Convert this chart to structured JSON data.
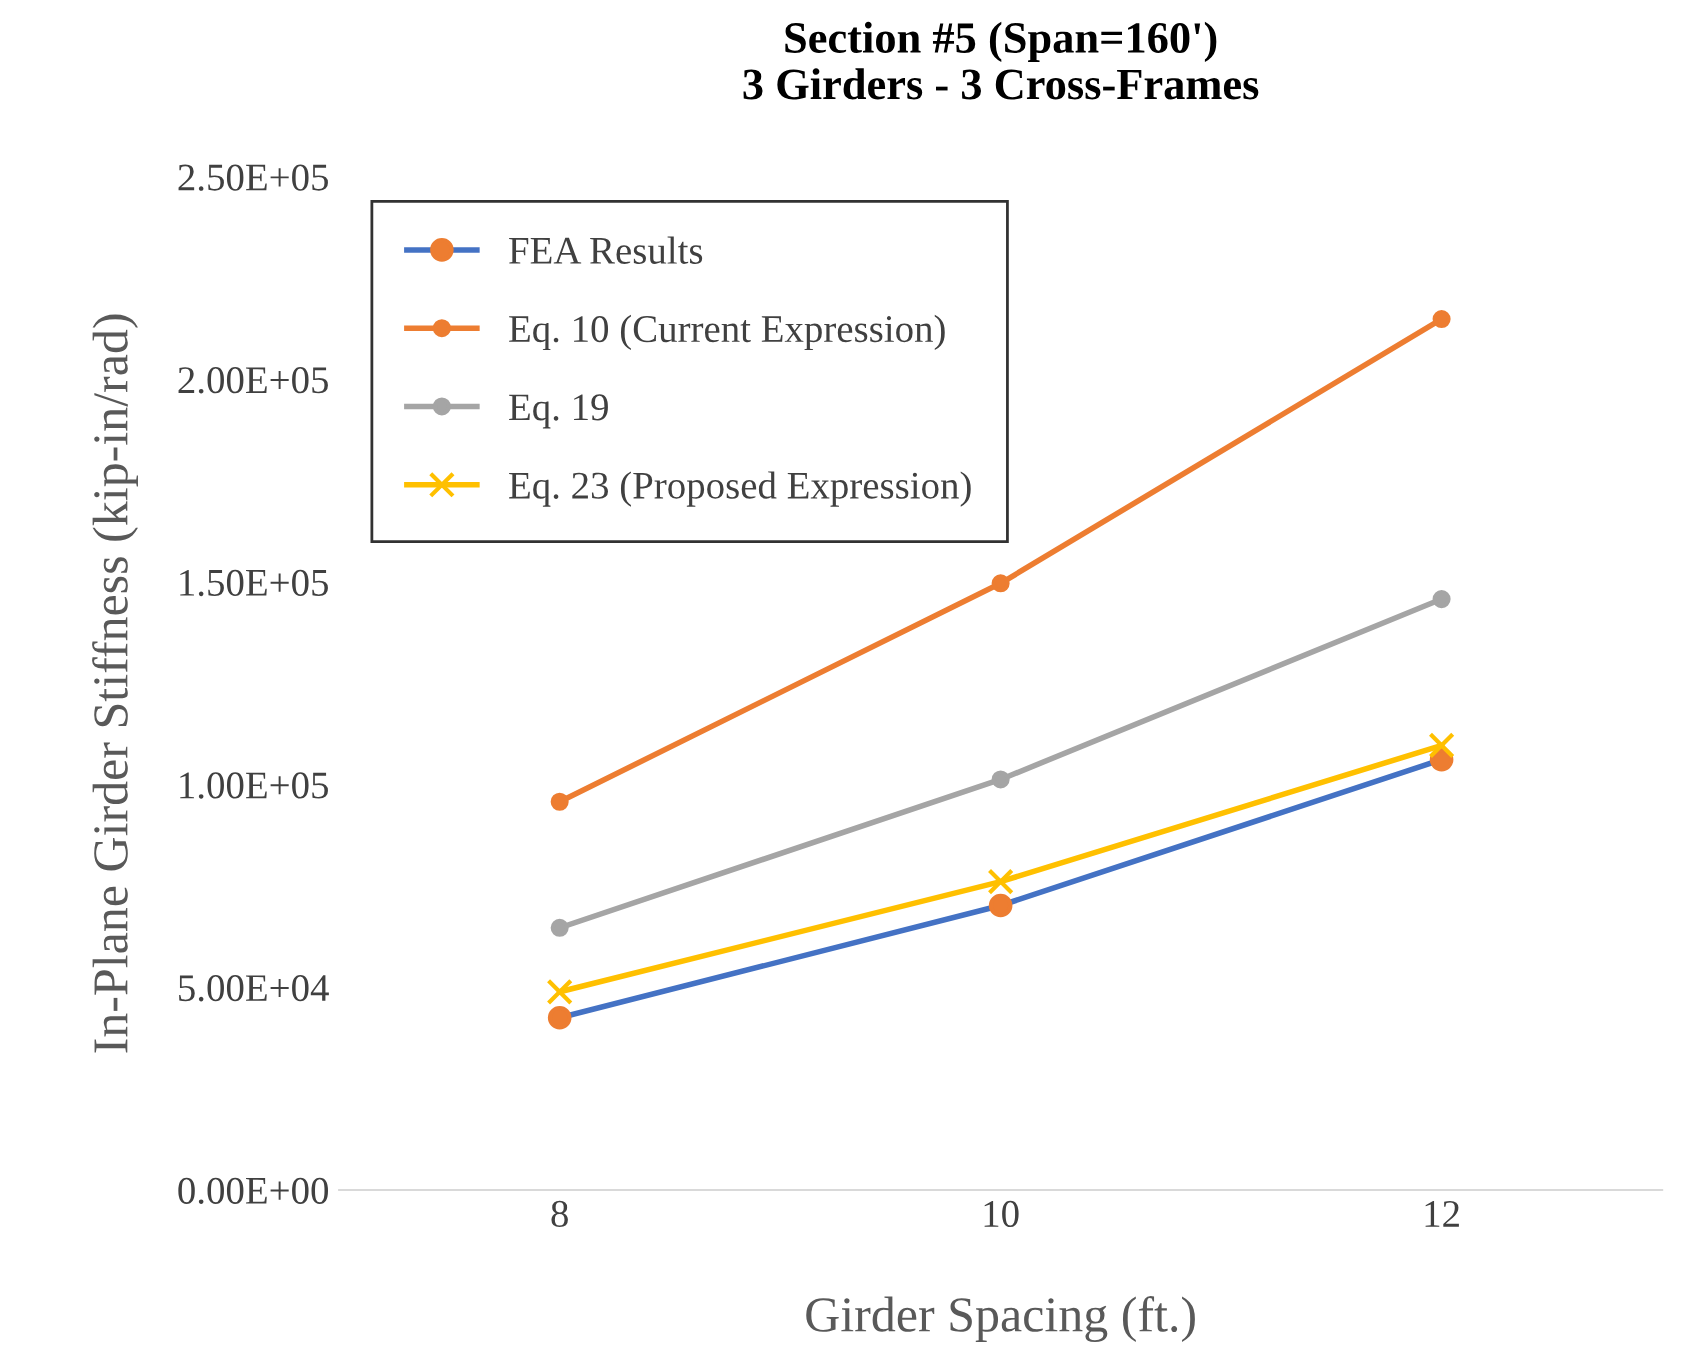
{
  "chart_data": {
    "type": "line",
    "title": "Section #5 (Span=160')\n3 Girders - 3 Cross-Frames",
    "xlabel": "Girder Spacing (ft.)",
    "ylabel": "In-Plane Girder Stiffness (kip-in/rad)",
    "x": [
      8,
      10,
      12
    ],
    "xlim": [
      7,
      13
    ],
    "xticks": [
      8,
      10,
      12
    ],
    "series": [
      {
        "name": "FEA Results",
        "color": "#4472c4",
        "colors": [
          "#ed7d31",
          "#ed7d31",
          "#ed7d31"
        ],
        "marker": "circle",
        "values": [
          42500,
          70200,
          106200
        ]
      },
      {
        "name": "Eq. 10 (Current Expression)",
        "color": "#ed7d31",
        "marker": "circle",
        "values": [
          95800,
          149700,
          214900
        ]
      },
      {
        "name": "Eq. 19",
        "color": "#a5a5a5",
        "marker": "circle",
        "values": [
          64700,
          101300,
          145800
        ]
      },
      {
        "name": "Eq. 23 (Proposed Expression)",
        "color": "#ffc000",
        "marker": "cross",
        "values": [
          48900,
          76100,
          109700
        ]
      }
    ],
    "ylim": [
      0,
      250000
    ],
    "yticks": [
      {
        "value": 0,
        "label": "0.00E+00"
      },
      {
        "value": 50000,
        "label": "5.00E+04"
      },
      {
        "value": 100000,
        "label": "1.00E+05"
      },
      {
        "value": 150000,
        "label": "1.50E+05"
      },
      {
        "value": 200000,
        "label": "2.00E+05"
      },
      {
        "value": 250000,
        "label": "2.50E+05"
      }
    ],
    "grid": false,
    "legend": "top left",
    "line_style": "solid"
  }
}
